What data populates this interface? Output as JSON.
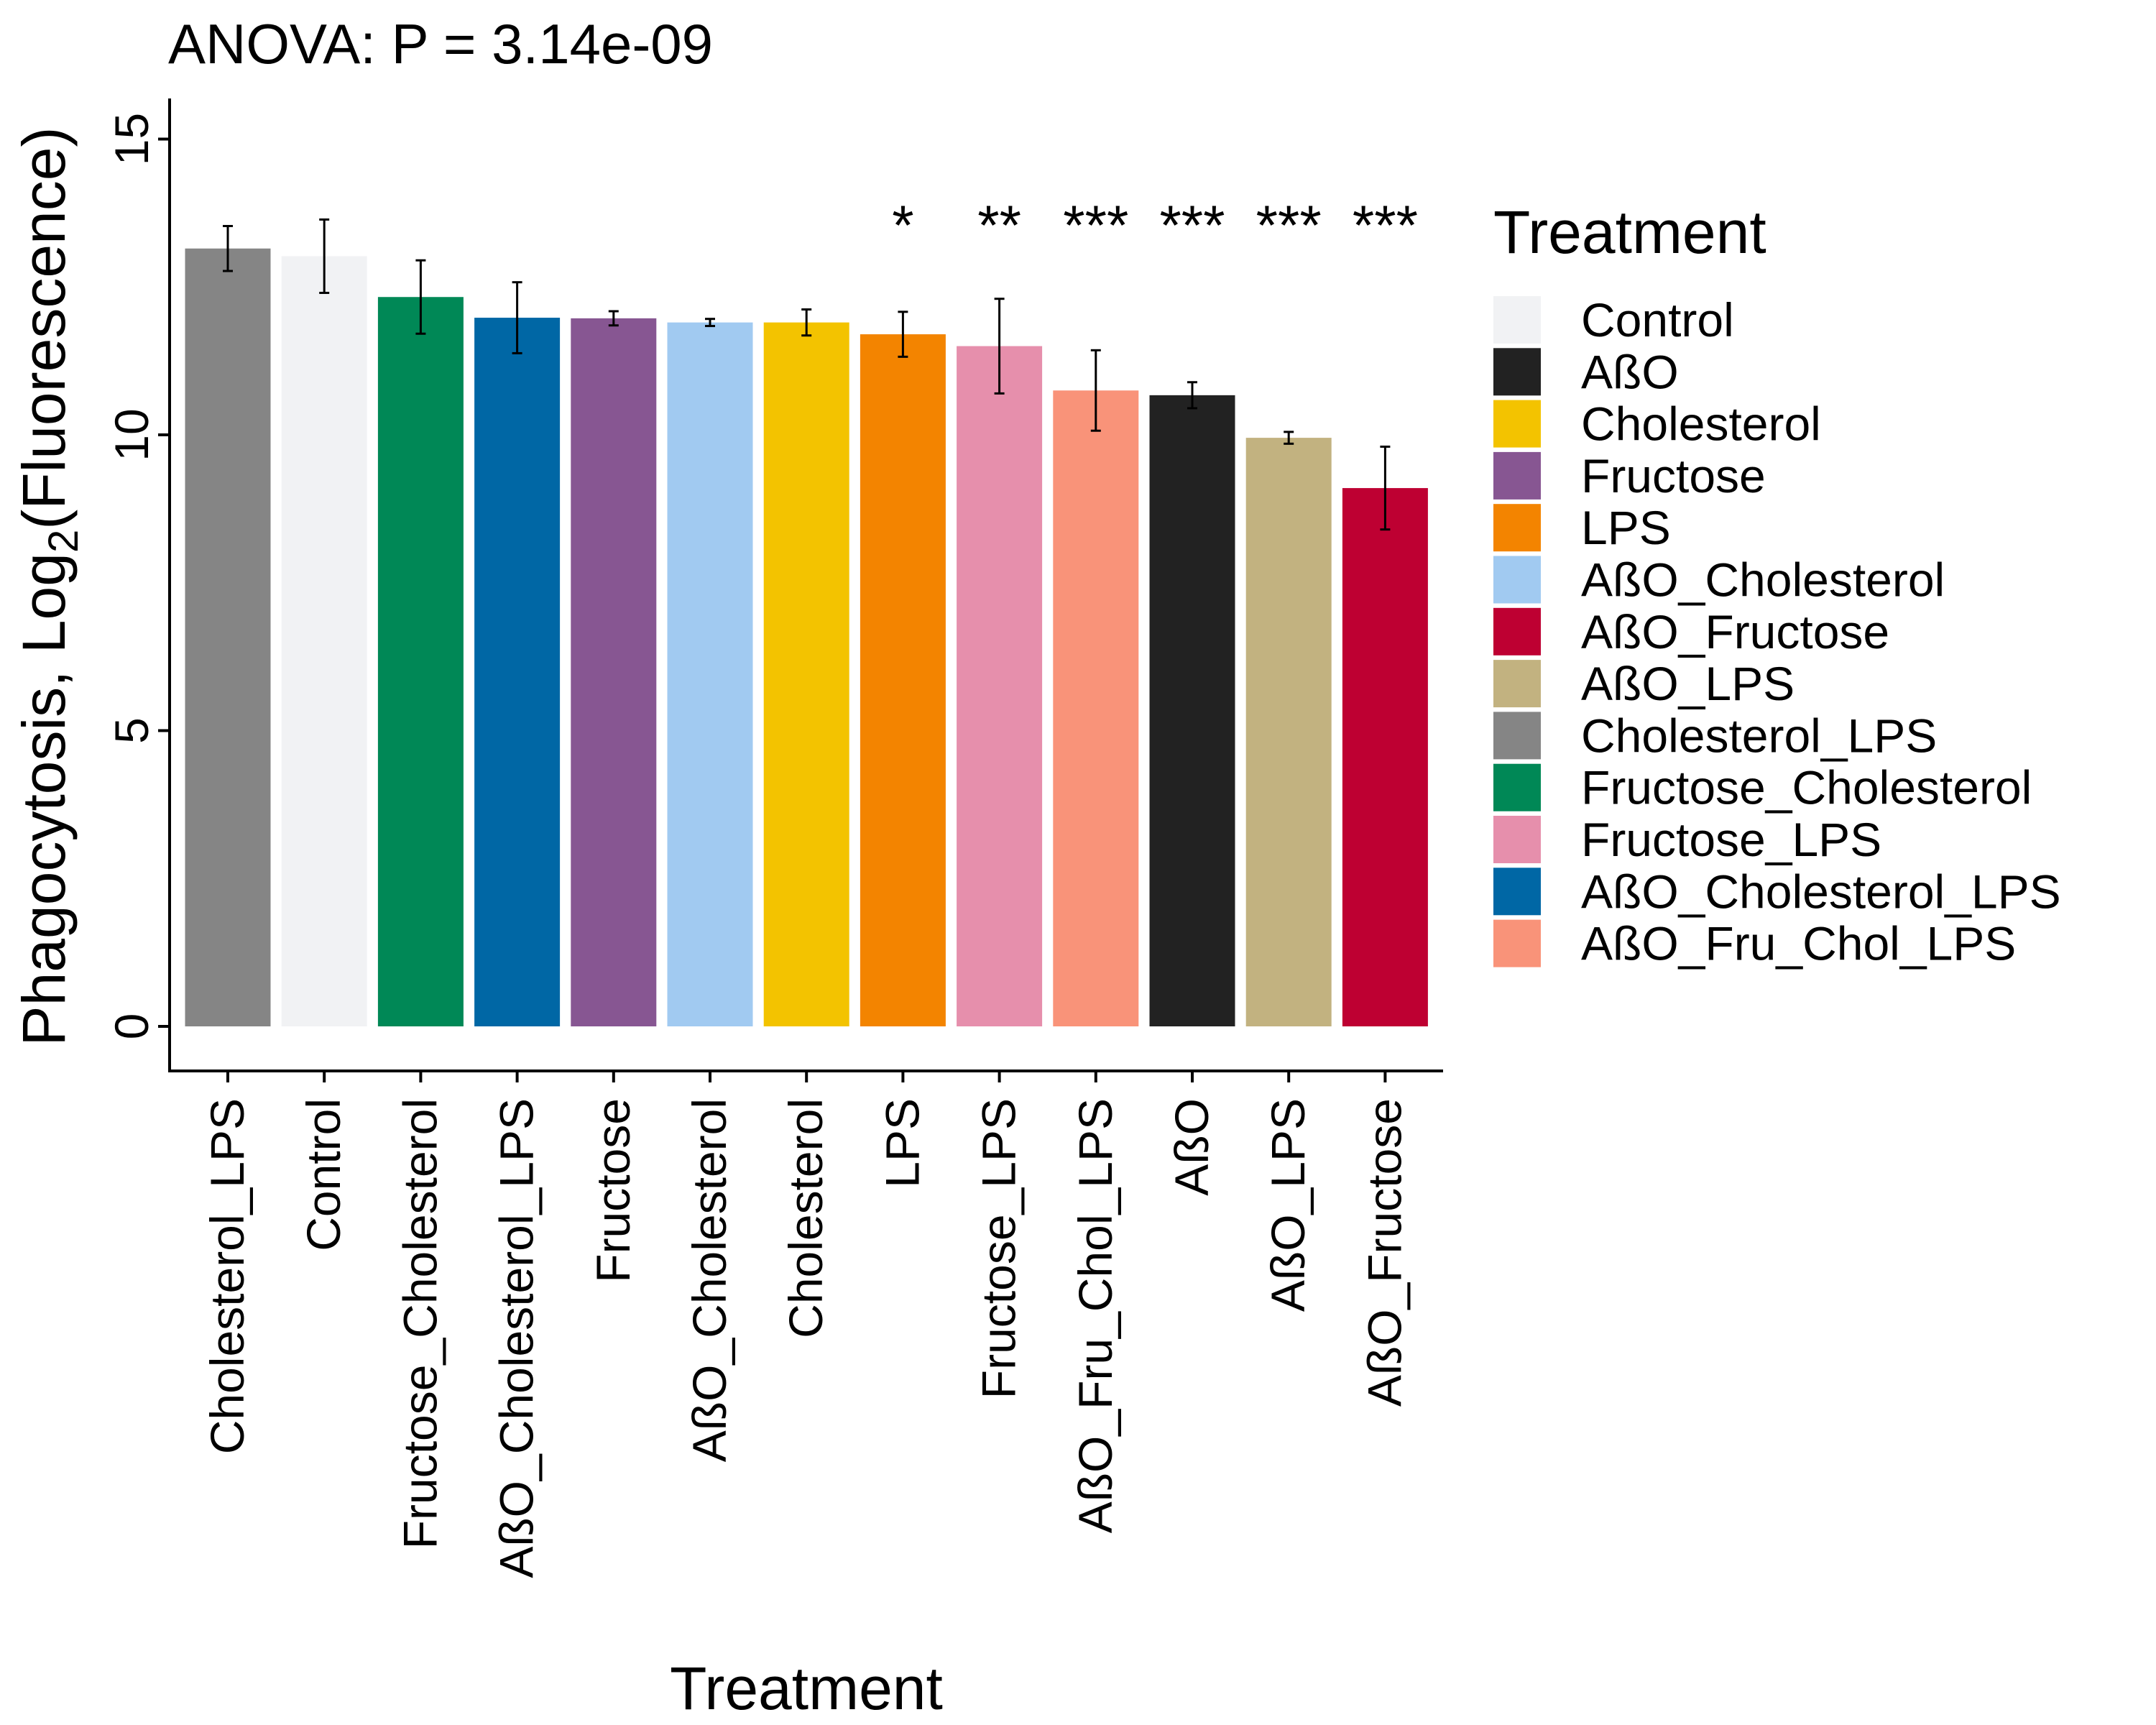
{
  "chart_data": {
    "type": "bar",
    "title": "ANOVA:  P  =  3.14e-09",
    "xlabel": "Treatment",
    "ylabel_main": "Phagocytosis, Log",
    "ylabel_sub": "2",
    "ylabel_tail": "(Fluorescence)",
    "ylim": [
      0,
      16
    ],
    "yticks": [
      "0",
      "5",
      "10",
      "15"
    ],
    "categories": [
      "Cholesterol_LPS",
      "Control",
      "Fructose_Cholesterol",
      "AßO_Cholesterol_LPS",
      "Fructose",
      "AßO_Cholesterol",
      "Cholesterol",
      "LPS",
      "Fructose_LPS",
      "AßO_Fru_Chol_LPS",
      "AßO",
      "AßO_LPS",
      "AßO_Fructose"
    ],
    "values": [
      13.15,
      13.02,
      12.33,
      11.98,
      11.97,
      11.9,
      11.9,
      11.7,
      11.5,
      10.75,
      10.67,
      9.95,
      9.1
    ],
    "error": [
      0.38,
      0.62,
      0.62,
      0.6,
      0.12,
      0.06,
      0.22,
      0.38,
      0.8,
      0.68,
      0.22,
      0.1,
      0.7
    ],
    "colors": [
      "#858585",
      "#F1F2F4",
      "#008856",
      "#0067A5",
      "#875692",
      "#A1CAF1",
      "#F3C300",
      "#F38400",
      "#E68FAC",
      "#F99379",
      "#222222",
      "#C2B280",
      "#BE0032"
    ],
    "significance": [
      "",
      "",
      "",
      "",
      "",
      "",
      "",
      "*",
      "**",
      "***",
      "***",
      "***",
      "***"
    ],
    "legend": {
      "title": "Treatment",
      "position": "right",
      "entries": [
        {
          "label": "Control",
          "color": "#F1F2F4"
        },
        {
          "label": "AßO",
          "color": "#222222"
        },
        {
          "label": "Cholesterol",
          "color": "#F3C300"
        },
        {
          "label": "Fructose",
          "color": "#875692"
        },
        {
          "label": "LPS",
          "color": "#F38400"
        },
        {
          "label": "AßO_Cholesterol",
          "color": "#A1CAF1"
        },
        {
          "label": "AßO_Fructose",
          "color": "#BE0032"
        },
        {
          "label": "AßO_LPS",
          "color": "#C2B280"
        },
        {
          "label": "Cholesterol_LPS",
          "color": "#858585"
        },
        {
          "label": "Fructose_Cholesterol",
          "color": "#008856"
        },
        {
          "label": "Fructose_LPS",
          "color": "#E68FAC"
        },
        {
          "label": "AßO_Cholesterol_LPS",
          "color": "#0067A5"
        },
        {
          "label": "AßO_Fru_Chol_LPS",
          "color": "#F99379"
        }
      ]
    },
    "grid": false
  }
}
